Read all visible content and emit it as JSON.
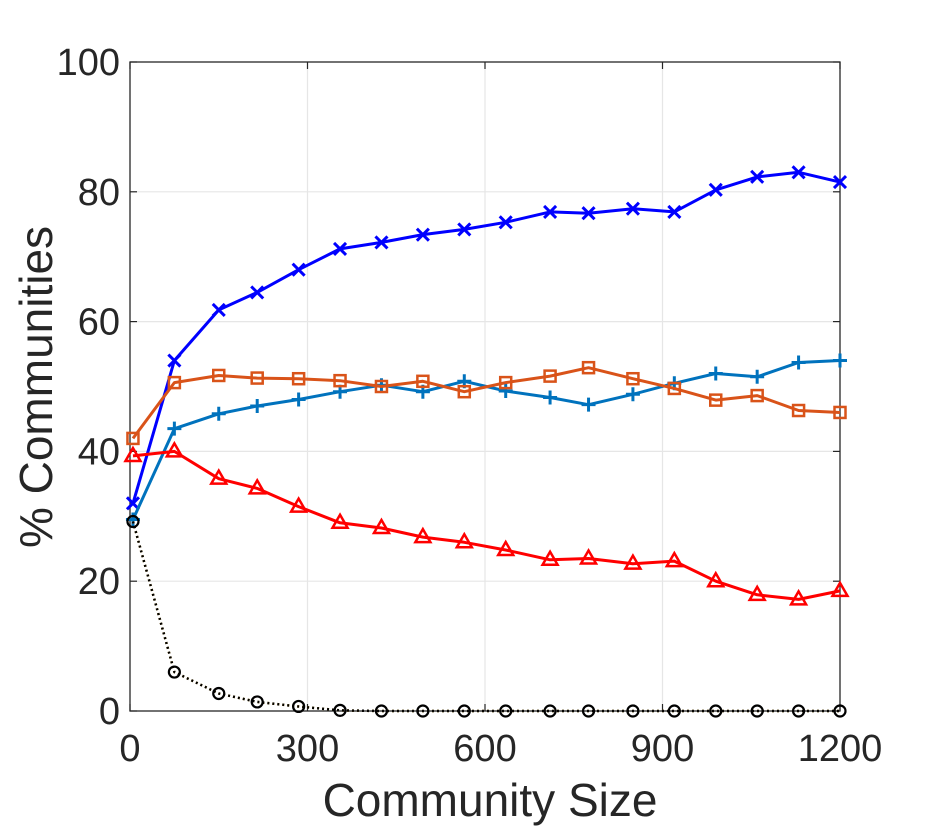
{
  "chart_data": {
    "type": "line",
    "title": "",
    "xlabel": "Community Size",
    "ylabel": "% Communities",
    "xlim": [
      0,
      1200
    ],
    "ylim": [
      0,
      100
    ],
    "xticks": [
      0,
      300,
      600,
      900,
      1200
    ],
    "yticks": [
      0,
      20,
      40,
      60,
      80,
      100
    ],
    "grid": true,
    "legend": "none",
    "x": [
      5,
      75,
      150,
      215,
      285,
      355,
      425,
      495,
      565,
      635,
      710,
      775,
      850,
      920,
      990,
      1060,
      1130,
      1200
    ],
    "series": [
      {
        "name": "dark-blue-x",
        "color": "#0000ff",
        "marker": "x",
        "linestyle": "solid",
        "values": [
          32,
          54,
          61.8,
          64.5,
          68,
          71.2,
          72.2,
          73.4,
          74.2,
          75.3,
          76.9,
          76.7,
          77.4,
          76.9,
          80.3,
          82.3,
          83,
          81.5
        ]
      },
      {
        "name": "blue-plus",
        "color": "#0072bd",
        "marker": "+",
        "linestyle": "solid",
        "values": [
          29.5,
          43.5,
          45.8,
          47,
          48,
          49.2,
          50.2,
          49.2,
          50.8,
          49.3,
          48.3,
          47.2,
          48.8,
          50.5,
          52,
          51.5,
          53.7,
          54
        ]
      },
      {
        "name": "orange-square",
        "color": "#d95319",
        "marker": "square",
        "linestyle": "solid",
        "values": [
          42,
          50.6,
          51.7,
          51.3,
          51.2,
          50.9,
          50,
          50.8,
          49.2,
          50.6,
          51.6,
          52.9,
          51.2,
          49.7,
          47.9,
          48.6,
          46.3,
          46
        ]
      },
      {
        "name": "red-triangle",
        "color": "#ff0000",
        "marker": "triangle",
        "linestyle": "solid",
        "values": [
          39.3,
          40,
          35.8,
          34.3,
          31.5,
          29,
          28.2,
          26.8,
          26,
          24.8,
          23.3,
          23.5,
          22.7,
          23.1,
          20,
          17.9,
          17.2,
          18.5
        ]
      },
      {
        "name": "yellow-dotted",
        "color": "#edb120",
        "marker": "none",
        "linestyle": "dotted",
        "values": [
          29.2,
          6,
          2.7,
          1.4,
          0.7,
          0.1,
          0,
          0,
          0,
          0,
          0,
          0,
          0,
          0,
          0,
          0,
          0,
          0
        ]
      },
      {
        "name": "black-circle",
        "color": "#000000",
        "marker": "circle",
        "linestyle": "dotted",
        "values": [
          29.2,
          6,
          2.7,
          1.4,
          0.7,
          0.1,
          0,
          0,
          0,
          0,
          0,
          0,
          0,
          0,
          0,
          0,
          0,
          0
        ]
      }
    ]
  }
}
